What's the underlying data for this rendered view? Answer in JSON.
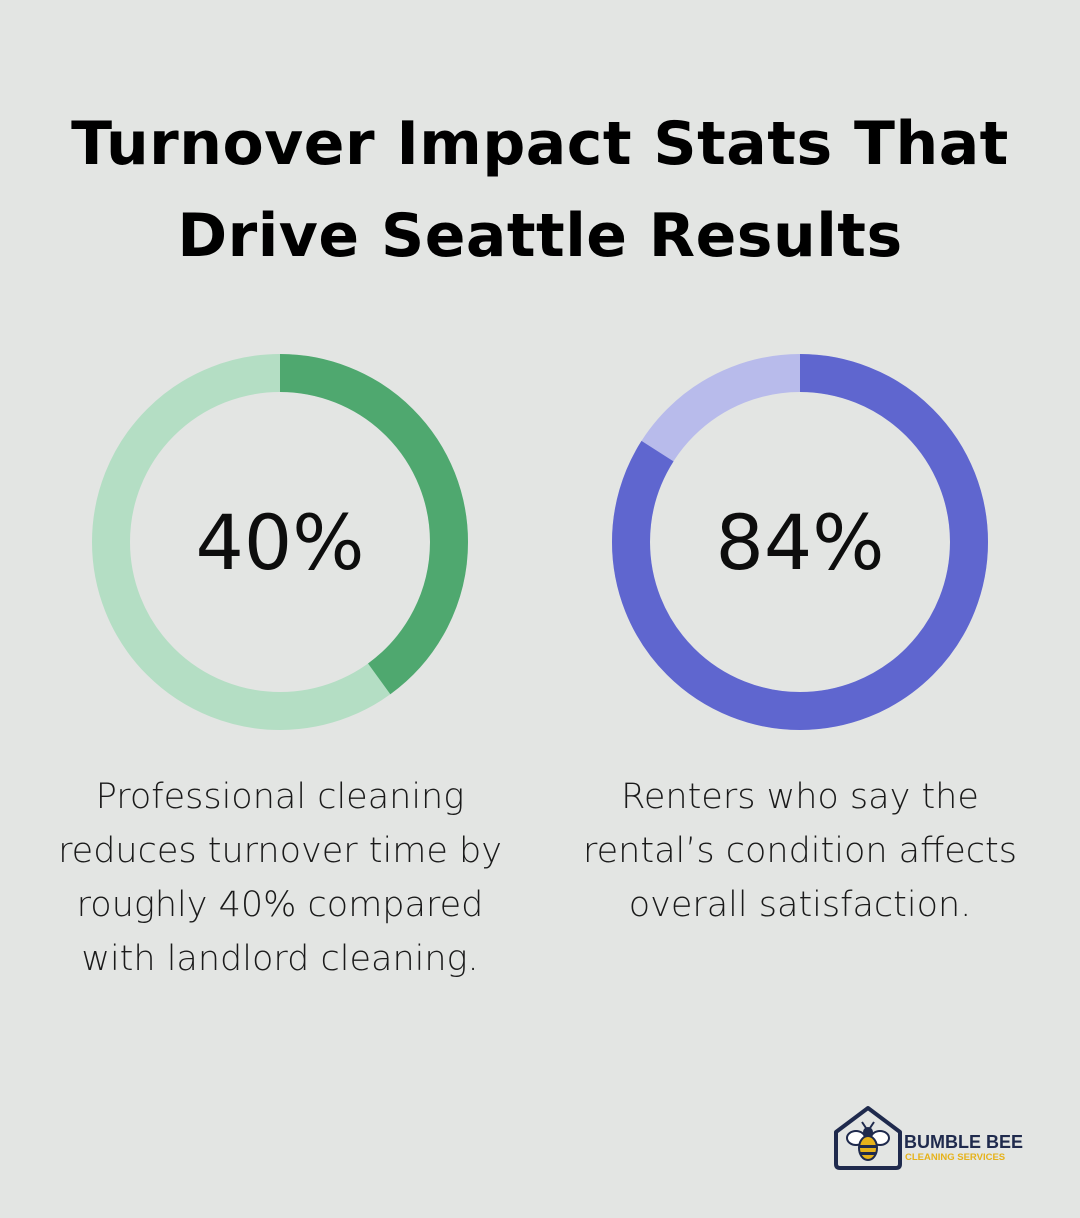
{
  "title": "Turnover Impact Stats That Drive Seattle Results",
  "chart_data": [
    {
      "type": "pie",
      "value": 40,
      "label": "40%",
      "caption": "Professional cleaning reduces turnover time by roughly 40% compared with landlord cleaning.",
      "colors": {
        "filled": "#4fa86f",
        "track": "#b4dec4"
      }
    },
    {
      "type": "pie",
      "value": 84,
      "label": "84%",
      "caption": "Renters who say the rental’s condition affects overall satisfaction.",
      "colors": {
        "filled": "#5f66cf",
        "track": "#b8bbeb"
      }
    }
  ],
  "logo": {
    "name": "BUMBLE BEE",
    "tagline": "CLEANING SERVICES",
    "icon": "bee-house-icon",
    "colors": {
      "navy": "#1f2a4d",
      "yellow": "#e6b21a"
    }
  }
}
